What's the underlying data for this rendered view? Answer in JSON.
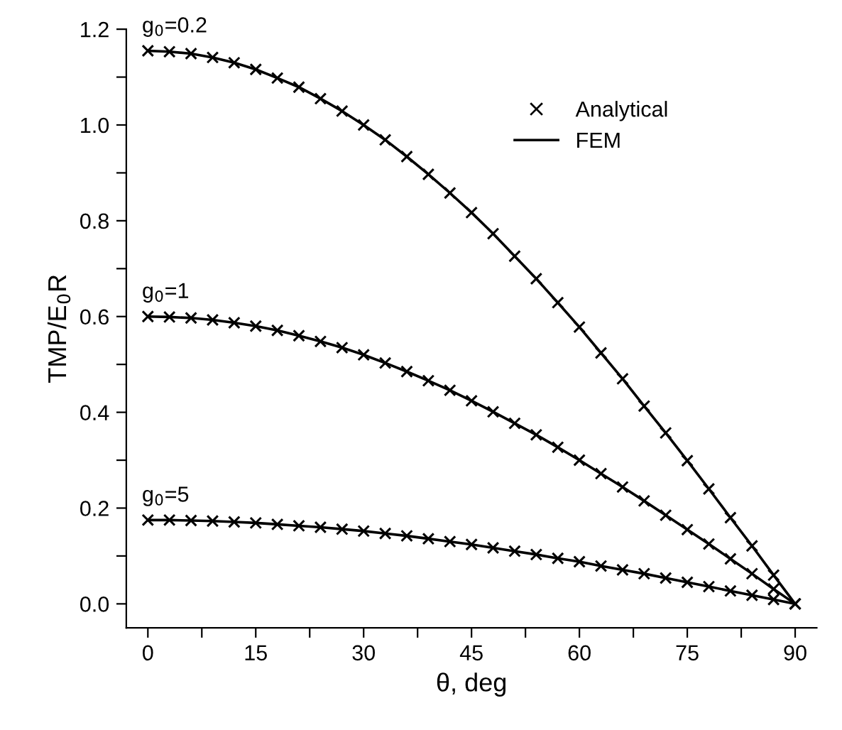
{
  "chart_data": {
    "type": "line",
    "xlabel": "θ, deg",
    "ylabel": "TMP/E$_{0}$R",
    "x": [
      0,
      3,
      6,
      9,
      12,
      15,
      18,
      21,
      24,
      27,
      30,
      33,
      36,
      39,
      42,
      45,
      48,
      51,
      54,
      57,
      60,
      63,
      66,
      69,
      72,
      75,
      78,
      81,
      84,
      87,
      90
    ],
    "series": [
      {
        "type": "scatter",
        "name": "Analytical",
        "color": "#000000",
        "marker": "cross",
        "values": [
          1.155,
          1.153,
          1.149,
          1.141,
          1.13,
          1.116,
          1.098,
          1.079,
          1.055,
          1.029,
          1.0,
          0.969,
          0.934,
          0.897,
          0.858,
          0.817,
          0.773,
          0.726,
          0.679,
          0.629,
          0.578,
          0.524,
          0.47,
          0.413,
          0.357,
          0.299,
          0.24,
          0.18,
          0.121,
          0.06,
          0
        ]
      },
      {
        "type": "scatter",
        "color": "#000000",
        "marker": "cross",
        "values": [
          0.6,
          0.599,
          0.597,
          0.593,
          0.587,
          0.58,
          0.571,
          0.56,
          0.548,
          0.535,
          0.52,
          0.503,
          0.485,
          0.466,
          0.446,
          0.424,
          0.401,
          0.377,
          0.353,
          0.327,
          0.3,
          0.272,
          0.244,
          0.215,
          0.185,
          0.155,
          0.125,
          0.094,
          0.063,
          0.031,
          0
        ]
      },
      {
        "type": "scatter",
        "color": "#000000",
        "marker": "cross",
        "values": [
          0.175,
          0.175,
          0.174,
          0.173,
          0.171,
          0.169,
          0.166,
          0.163,
          0.16,
          0.156,
          0.152,
          0.147,
          0.142,
          0.136,
          0.13,
          0.124,
          0.117,
          0.11,
          0.103,
          0.095,
          0.088,
          0.079,
          0.071,
          0.063,
          0.054,
          0.045,
          0.036,
          0.027,
          0.018,
          0.009,
          0
        ]
      },
      {
        "name": "FEM",
        "color": "#000000",
        "line_style": "solid",
        "values": [
          1.155,
          1.153,
          1.149,
          1.141,
          1.13,
          1.116,
          1.098,
          1.079,
          1.055,
          1.029,
          1.0,
          0.969,
          0.934,
          0.897,
          0.858,
          0.817,
          0.773,
          0.726,
          0.679,
          0.629,
          0.578,
          0.524,
          0.47,
          0.413,
          0.357,
          0.299,
          0.24,
          0.18,
          0.121,
          0.06,
          0
        ]
      },
      {
        "color": "#000000",
        "line_style": "solid",
        "values": [
          0.6,
          0.599,
          0.597,
          0.593,
          0.587,
          0.58,
          0.571,
          0.56,
          0.548,
          0.535,
          0.52,
          0.503,
          0.485,
          0.466,
          0.446,
          0.424,
          0.401,
          0.377,
          0.353,
          0.327,
          0.3,
          0.272,
          0.244,
          0.215,
          0.185,
          0.155,
          0.125,
          0.094,
          0.063,
          0.031,
          0
        ]
      },
      {
        "color": "#000000",
        "line_style": "solid",
        "values": [
          0.175,
          0.175,
          0.174,
          0.173,
          0.171,
          0.169,
          0.166,
          0.163,
          0.16,
          0.156,
          0.152,
          0.147,
          0.142,
          0.136,
          0.13,
          0.124,
          0.117,
          0.11,
          0.103,
          0.095,
          0.088,
          0.079,
          0.071,
          0.063,
          0.054,
          0.045,
          0.036,
          0.027,
          0.018,
          0.009,
          0
        ]
      }
    ],
    "annotations": [
      "g$_{0}$=0.2",
      "g$_{0}$=1",
      "g$_{0}$=5"
    ],
    "xlim": [
      -3,
      93
    ],
    "ylim": [
      -0.05,
      1.2
    ],
    "xticks": [
      0,
      {
        "value": 7.5,
        "label": null
      },
      15,
      {
        "value": 22.5,
        "label": null
      },
      30,
      {
        "value": 37.5,
        "label": null
      },
      45,
      {
        "value": 52.5,
        "label": null
      },
      60,
      {
        "value": 67.5,
        "label": null
      },
      75,
      {
        "value": 82.5,
        "label": null
      },
      90
    ],
    "yticks": [
      {
        "value": 0,
        "label": "0.0"
      },
      {
        "value": 0.1,
        "label": null
      },
      {
        "value": 0.2,
        "label": "0.2"
      },
      {
        "value": 0.3,
        "label": null
      },
      {
        "value": 0.4,
        "label": "0.4"
      },
      {
        "value": 0.5,
        "label": null
      },
      {
        "value": 0.6,
        "label": "0.6"
      },
      {
        "value": 0.7,
        "label": null
      },
      {
        "value": 0.8,
        "label": "0.8"
      },
      {
        "value": 0.9,
        "label": null
      },
      {
        "value": 1.0,
        "label": "1.0"
      },
      {
        "value": 1.1,
        "label": null
      },
      {
        "value": 1.2,
        "label": "1.2"
      }
    ],
    "grid": false,
    "legend": "top right"
  }
}
